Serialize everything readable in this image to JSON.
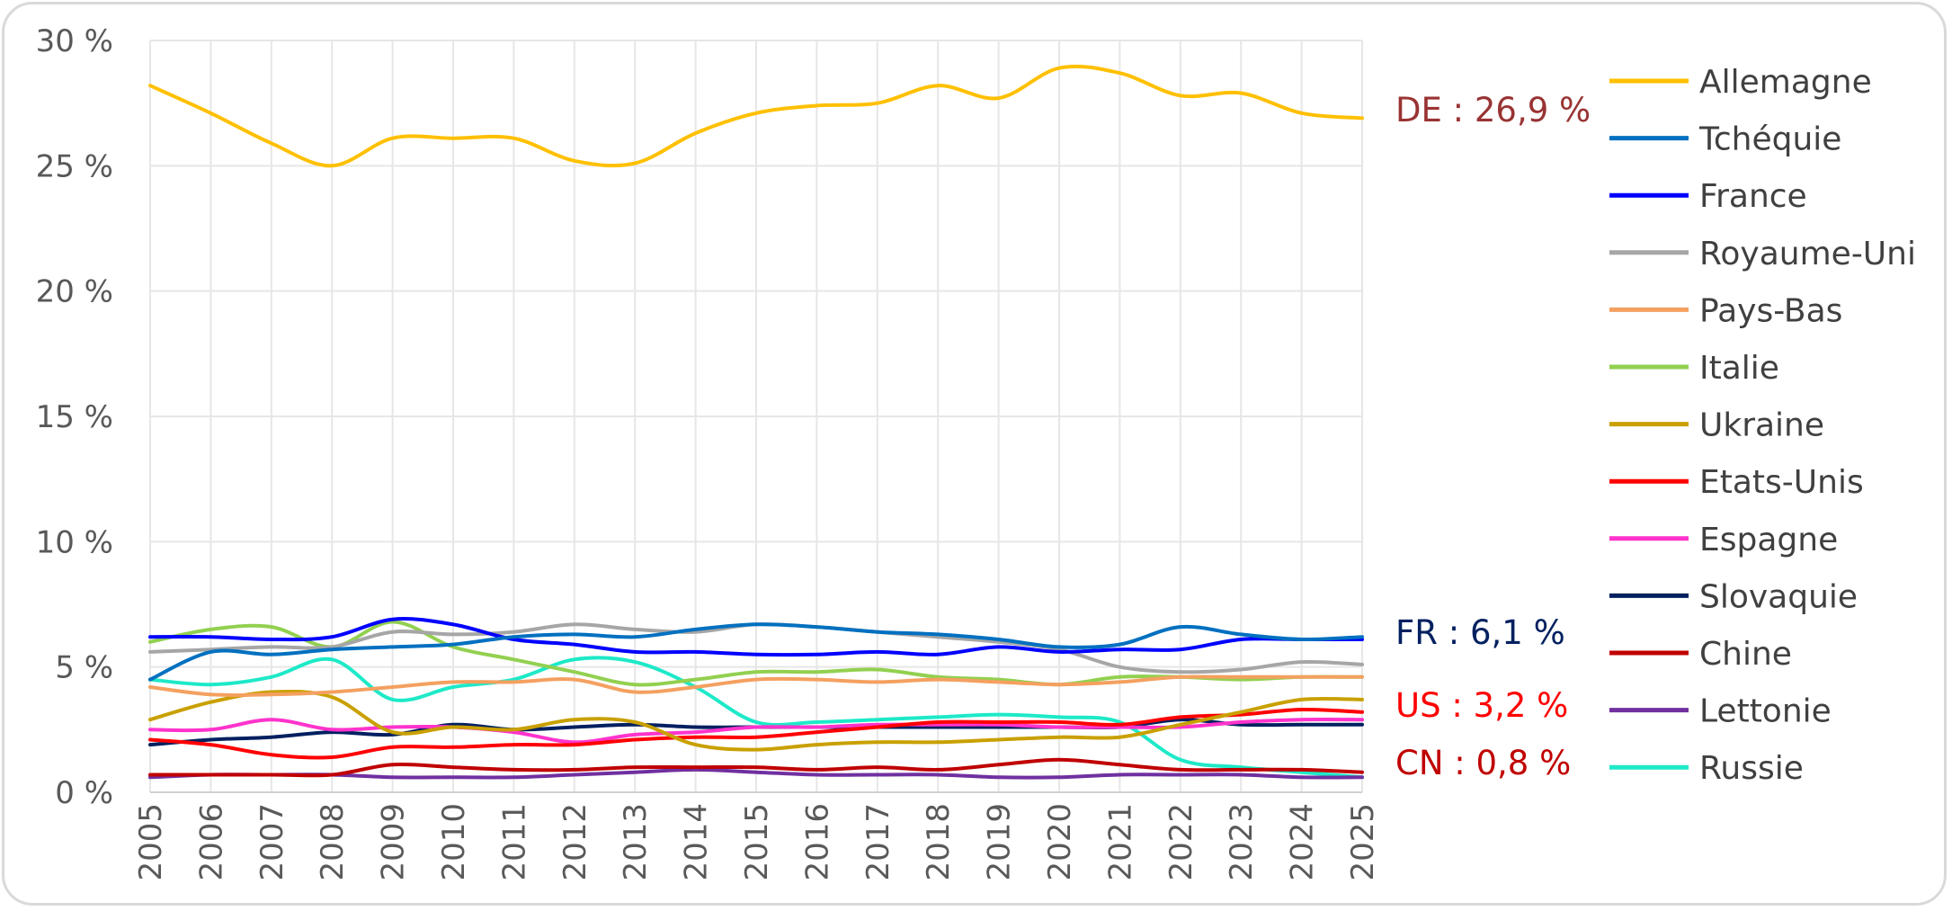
{
  "chart_data": {
    "type": "line",
    "title": "",
    "xlabel": "",
    "ylabel": "",
    "x": [
      "2005",
      "2006",
      "2007",
      "2008",
      "2009",
      "2010",
      "2011",
      "2012",
      "2013",
      "2014",
      "2015",
      "2016",
      "2017",
      "2018",
      "2019",
      "2020",
      "2021",
      "2022",
      "2023",
      "2024",
      "2025"
    ],
    "y_ticks": [
      "0 %",
      "5 %",
      "10 %",
      "15 %",
      "20 %",
      "25 %",
      "30 %"
    ],
    "ylim": [
      0,
      30
    ],
    "series": [
      {
        "name": "Allemagne",
        "color": "#ffc000",
        "values": [
          28.2,
          27.1,
          25.9,
          25.0,
          26.1,
          26.1,
          26.1,
          25.2,
          25.1,
          26.3,
          27.1,
          27.4,
          27.5,
          28.2,
          27.7,
          28.9,
          28.7,
          27.8,
          27.9,
          27.1,
          26.9
        ]
      },
      {
        "name": "Tchéquie",
        "color": "#0070c0",
        "values": [
          4.5,
          5.6,
          5.5,
          5.7,
          5.8,
          5.9,
          6.2,
          6.3,
          6.2,
          6.5,
          6.7,
          6.6,
          6.4,
          6.3,
          6.1,
          5.8,
          5.9,
          6.6,
          6.3,
          6.1,
          6.2
        ]
      },
      {
        "name": "France",
        "color": "#0000ff",
        "values": [
          6.2,
          6.2,
          6.1,
          6.2,
          6.9,
          6.7,
          6.1,
          5.9,
          5.6,
          5.6,
          5.5,
          5.5,
          5.6,
          5.5,
          5.8,
          5.6,
          5.7,
          5.7,
          6.1,
          6.1,
          6.1
        ]
      },
      {
        "name": "Royaume-Uni",
        "color": "#a6a6a6",
        "values": [
          5.6,
          5.7,
          5.8,
          5.8,
          6.4,
          6.3,
          6.4,
          6.7,
          6.5,
          6.4,
          6.7,
          6.6,
          6.4,
          6.2,
          6.0,
          5.7,
          5.0,
          4.8,
          4.9,
          5.2,
          5.1
        ]
      },
      {
        "name": "Pays-Bas",
        "color": "#f4a060",
        "values": [
          4.2,
          3.9,
          3.9,
          4.0,
          4.2,
          4.4,
          4.4,
          4.5,
          4.0,
          4.2,
          4.5,
          4.5,
          4.4,
          4.5,
          4.4,
          4.3,
          4.4,
          4.6,
          4.6,
          4.6,
          4.6
        ]
      },
      {
        "name": "Italie",
        "color": "#92d050",
        "values": [
          6.0,
          6.5,
          6.6,
          5.8,
          6.8,
          5.8,
          5.3,
          4.8,
          4.3,
          4.5,
          4.8,
          4.8,
          4.9,
          4.6,
          4.5,
          4.3,
          4.6,
          4.6,
          4.5,
          4.6,
          4.6
        ]
      },
      {
        "name": "Ukraine",
        "color": "#c9a000",
        "values": [
          2.9,
          3.6,
          4.0,
          3.8,
          2.4,
          2.6,
          2.5,
          2.9,
          2.8,
          1.9,
          1.7,
          1.9,
          2.0,
          2.0,
          2.1,
          2.2,
          2.2,
          2.7,
          3.2,
          3.7,
          3.7
        ]
      },
      {
        "name": "Etats-Unis",
        "color": "#ff0000",
        "values": [
          2.1,
          1.9,
          1.5,
          1.4,
          1.8,
          1.8,
          1.9,
          1.9,
          2.1,
          2.2,
          2.2,
          2.4,
          2.6,
          2.8,
          2.8,
          2.8,
          2.7,
          3.0,
          3.1,
          3.3,
          3.2
        ]
      },
      {
        "name": "Espagne",
        "color": "#ff33cc",
        "values": [
          2.5,
          2.5,
          2.9,
          2.5,
          2.6,
          2.6,
          2.4,
          2.0,
          2.3,
          2.4,
          2.6,
          2.6,
          2.7,
          2.7,
          2.7,
          2.6,
          2.6,
          2.6,
          2.8,
          2.9,
          2.9
        ]
      },
      {
        "name": "Slovaquie",
        "color": "#002060",
        "values": [
          1.9,
          2.1,
          2.2,
          2.4,
          2.3,
          2.7,
          2.5,
          2.6,
          2.7,
          2.6,
          2.6,
          2.6,
          2.6,
          2.6,
          2.6,
          2.6,
          2.6,
          2.9,
          2.7,
          2.7,
          2.7
        ]
      },
      {
        "name": "Chine",
        "color": "#c00000",
        "values": [
          0.7,
          0.7,
          0.7,
          0.7,
          1.1,
          1.0,
          0.9,
          0.9,
          1.0,
          1.0,
          1.0,
          0.9,
          1.0,
          0.9,
          1.1,
          1.3,
          1.1,
          0.9,
          0.9,
          0.9,
          0.8
        ]
      },
      {
        "name": "Lettonie",
        "color": "#7030a0",
        "values": [
          0.6,
          0.7,
          0.7,
          0.7,
          0.6,
          0.6,
          0.6,
          0.7,
          0.8,
          0.9,
          0.8,
          0.7,
          0.7,
          0.7,
          0.6,
          0.6,
          0.7,
          0.7,
          0.7,
          0.6,
          0.6
        ]
      },
      {
        "name": "Russie",
        "color": "#1de9c8",
        "values": [
          4.5,
          4.3,
          4.6,
          5.3,
          3.7,
          4.2,
          4.5,
          5.3,
          5.2,
          4.2,
          2.8,
          2.8,
          2.9,
          3.0,
          3.1,
          3.0,
          2.8,
          1.3,
          1.0,
          0.8,
          0.6
        ]
      }
    ],
    "annotations": [
      {
        "name": "de-label",
        "text": "DE : 26,9 %",
        "color": "#993333",
        "value": 26.9
      },
      {
        "name": "fr-label",
        "text": "FR : 6,1 %",
        "color": "#002060",
        "value": 6.1
      },
      {
        "name": "us-label",
        "text": "US : 3,2 %",
        "color": "#ff0000",
        "value": 3.2
      },
      {
        "name": "cn-label",
        "text": "CN : 0,8 %",
        "color": "#c00000",
        "value": 0.8
      }
    ],
    "grid": true,
    "legend_position": "right"
  }
}
